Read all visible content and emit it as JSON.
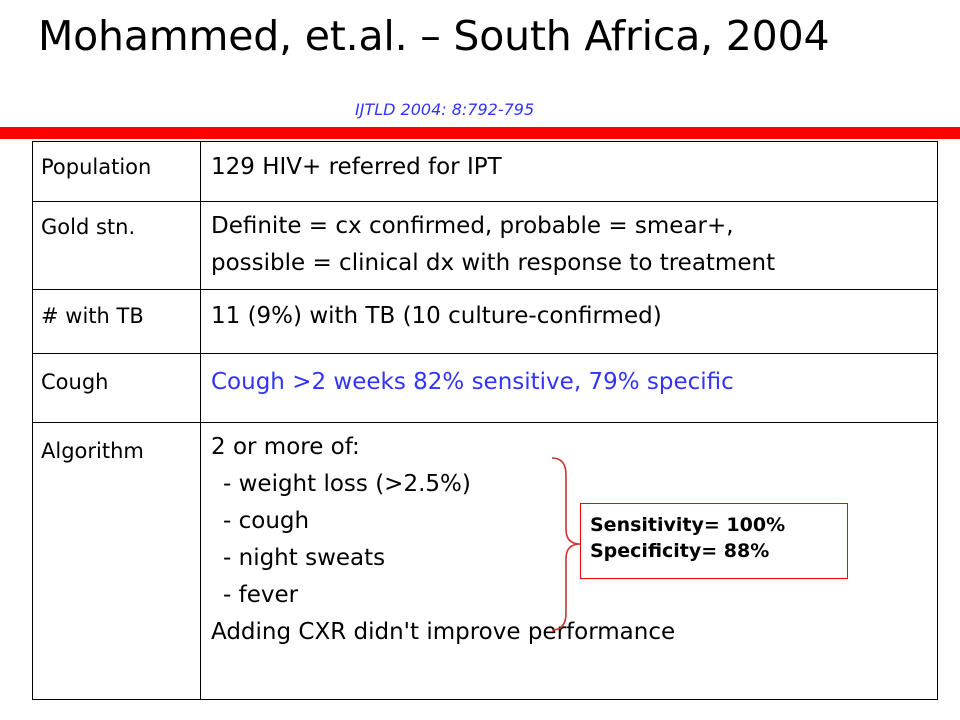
{
  "slide": {
    "title": "Mohammed, et.al. – South Africa, 2004",
    "citation": "IJTLD 2004: 8:792-795"
  },
  "table": {
    "rows": [
      {
        "label": "Population",
        "value_lines": [
          "129 HIV+ referred for IPT"
        ]
      },
      {
        "label": "Gold stn.",
        "value_lines": [
          "Definite = cx confirmed, probable = smear+,",
          "possible = clinical dx with response to treatment"
        ]
      },
      {
        "label": "# with TB",
        "value_lines": [
          "11 (9%) with TB (10 culture-confirmed)"
        ]
      },
      {
        "label": "Cough",
        "value_lines": [
          "Cough >2 weeks 82% sensitive, 79% specific"
        ],
        "value_color": "#3333ff"
      },
      {
        "label": "Algorithm",
        "intro": "2 or more of:",
        "items": [
          "- weight loss (>2.5%)",
          "- cough",
          "- night sweats",
          "- fever"
        ],
        "footer": "Adding CXR didn't improve performance"
      }
    ]
  },
  "result": {
    "sensitivity": "Sensitivity= 100%",
    "specificity": "Specificity= 88%"
  },
  "colors": {
    "accent_bar": "#ff0000",
    "citation": "#3333ff",
    "highlight_text": "#3333ff",
    "brace": "#cc3333",
    "result_border": "#ff0000"
  }
}
